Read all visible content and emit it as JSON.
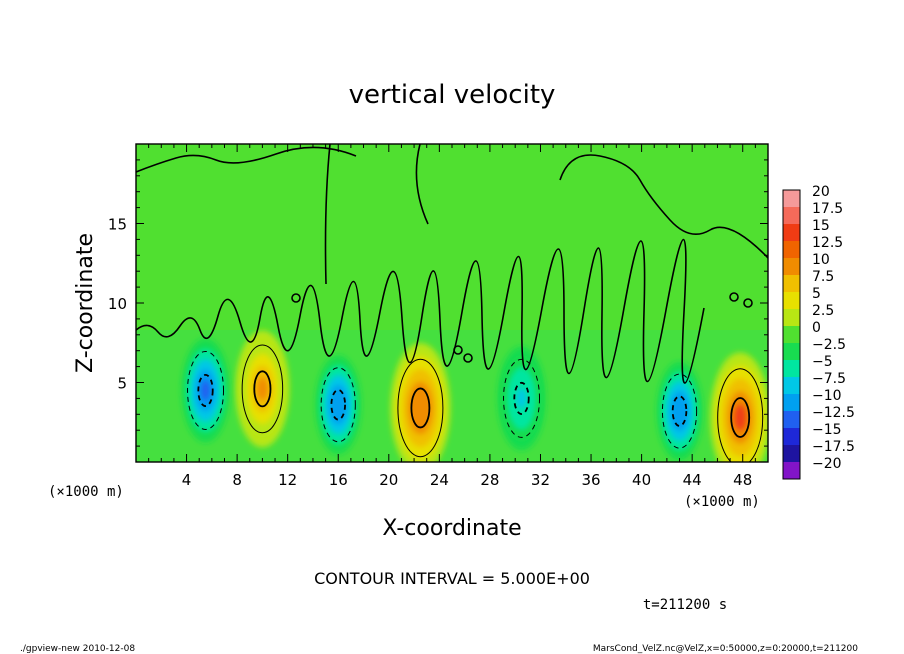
{
  "chart_data": {
    "type": "heatmap",
    "title": "vertical velocity",
    "xlabel": "X-coordinate",
    "ylabel": "Z-coordinate",
    "x_unit_label": "(×1000 m)",
    "y_unit_label": "(×1000 m)",
    "xlim": [
      0,
      50
    ],
    "ylim": [
      0,
      20
    ],
    "x_ticks": [
      4,
      8,
      12,
      16,
      20,
      24,
      28,
      32,
      36,
      40,
      44,
      48
    ],
    "y_ticks": [
      5,
      10,
      15
    ],
    "contour_interval_label": "CONTOUR INTERVAL = 5.000E+00",
    "time_label": "t=211200 s",
    "colorbar": {
      "levels": [
        "20",
        "17.5",
        "15",
        "12.5",
        "10",
        "7.5",
        "5",
        "2.5",
        "0",
        "-2.5",
        "-5",
        "-7.5",
        "-10",
        "-12.5",
        "-15",
        "-17.5",
        "-20"
      ],
      "colors": [
        "#f59a9a",
        "#f56a5a",
        "#f03c14",
        "#f06400",
        "#f08c00",
        "#f0c000",
        "#e8e000",
        "#b8e614",
        "#50e030",
        "#18dc50",
        "#00e6a0",
        "#00c8e6",
        "#00a0f0",
        "#2060f0",
        "#1e28d8",
        "#1e14a0",
        "#8214c8"
      ]
    },
    "background_value": 0,
    "cells": [
      {
        "x": 5.5,
        "z": 4.5,
        "w": 0.4,
        "sign": "down",
        "peak": -12
      },
      {
        "x": 10.0,
        "z": 4.6,
        "w": 0.45,
        "sign": "up",
        "peak": 9
      },
      {
        "x": 16.0,
        "z": 3.6,
        "w": 0.38,
        "sign": "down",
        "peak": -11
      },
      {
        "x": 22.5,
        "z": 3.4,
        "w": 0.5,
        "sign": "up",
        "peak": 11
      },
      {
        "x": 30.5,
        "z": 4.0,
        "w": 0.4,
        "sign": "down",
        "peak": -7
      },
      {
        "x": 43.0,
        "z": 3.2,
        "w": 0.38,
        "sign": "down",
        "peak": -11
      },
      {
        "x": 47.8,
        "z": 2.8,
        "w": 0.5,
        "sign": "up",
        "peak": 14
      }
    ]
  },
  "footer": {
    "left": "./gpview-new  2010-12-08",
    "right": "MarsCond_VelZ.nc@VelZ,x=0:50000,z=0:20000,t=211200"
  }
}
